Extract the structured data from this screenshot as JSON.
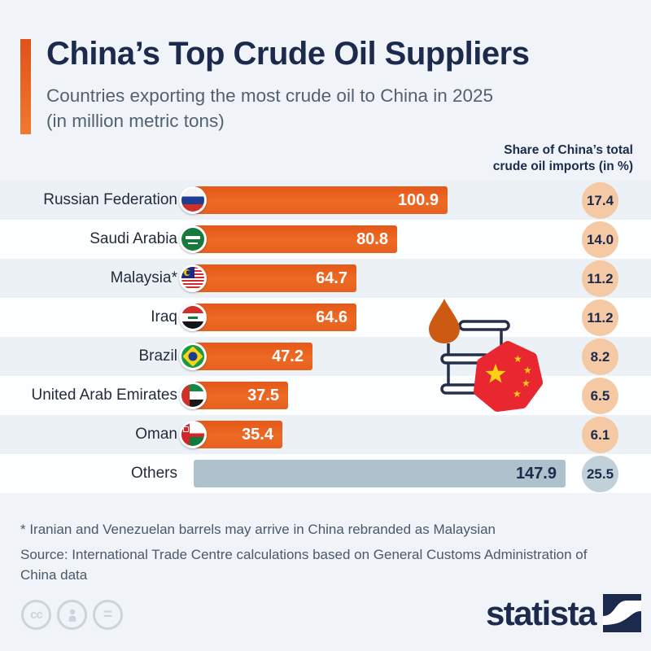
{
  "page": {
    "background_color": "#f0f4f8",
    "accent_color": "#e8611e",
    "navy_color": "#1c2b4d",
    "others_bar_color": "#adc2cc",
    "share_badge_color": "#f6c9a5",
    "others_badge_color": "#c2d1d9"
  },
  "header": {
    "title": "China’s Top Crude Oil Suppliers",
    "subtitle_line1": "Countries exporting the most crude oil to China in 2025",
    "subtitle_line2": "(in million metric tons)",
    "share_header_line1": "Share of China’s total",
    "share_header_line2": "crude oil imports (in %)"
  },
  "chart_data": {
    "type": "bar",
    "orientation": "horizontal",
    "title": "China’s Top Crude Oil Suppliers",
    "subtitle": "Countries exporting the most crude oil to China in 2025 (in million metric tons)",
    "unit": "million metric tons",
    "axis_max": 147.9,
    "grid": false,
    "legend": "none",
    "value_labels": "inside-end",
    "categories": [
      "Russian Federation",
      "Saudi Arabia",
      "Malaysia*",
      "Iraq",
      "Brazil",
      "United Arab Emirates",
      "Oman",
      "Others"
    ],
    "series": [
      {
        "name": "Crude oil exports to China (million metric tons)",
        "values": [
          100.9,
          80.8,
          64.7,
          64.6,
          47.2,
          37.5,
          35.4,
          147.9
        ]
      },
      {
        "name": "Share of China's total crude oil imports (in %)",
        "values": [
          17.4,
          14.0,
          11.2,
          11.2,
          8.2,
          6.5,
          6.1,
          25.5
        ]
      }
    ]
  },
  "rows": [
    {
      "label": "Russian Federation",
      "flag": "russia-flag-icon",
      "value": "100.9",
      "share": "17.4"
    },
    {
      "label": "Saudi Arabia",
      "flag": "saudi-arabia-flag-icon",
      "value": "80.8",
      "share": "14.0"
    },
    {
      "label": "Malaysia*",
      "flag": "malaysia-flag-icon",
      "value": "64.7",
      "share": "11.2"
    },
    {
      "label": "Iraq",
      "flag": "iraq-flag-icon",
      "value": "64.6",
      "share": "11.2"
    },
    {
      "label": "Brazil",
      "flag": "brazil-flag-icon",
      "value": "47.2",
      "share": "8.2"
    },
    {
      "label": "United Arab Emirates",
      "flag": "uae-flag-icon",
      "value": "37.5",
      "share": "6.5"
    },
    {
      "label": "Oman",
      "flag": "oman-flag-icon",
      "value": "35.4",
      "share": "6.1"
    },
    {
      "label": "Others",
      "flag": null,
      "value": "147.9",
      "share": "25.5"
    }
  ],
  "footer": {
    "note": "* Iranian and Venezuelan barrels may arrive in China rebranded as Malaysian",
    "source": "Source: International Trade Centre calculations based on General Customs Administration of China data",
    "brand": "statista"
  },
  "badges": {
    "cc_glyph": "cc",
    "equals_glyph": "="
  }
}
